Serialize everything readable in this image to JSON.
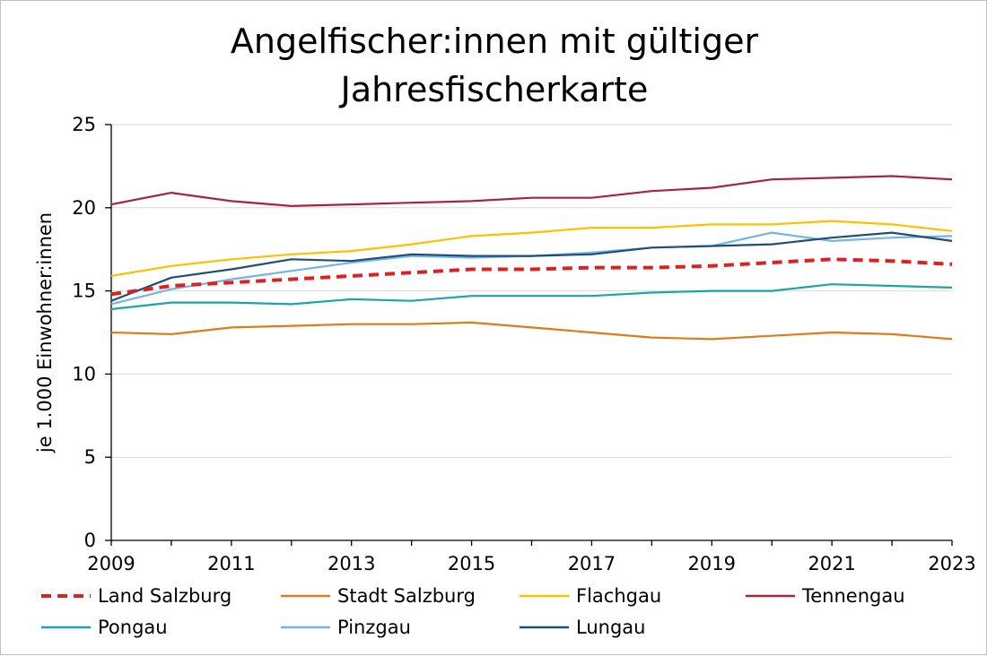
{
  "chart_data": {
    "type": "line",
    "title_lines": [
      "Angelfischer:innen mit gültiger",
      "Jahresfischerkarte"
    ],
    "ylabel": "je 1.000 Einwohner:innen",
    "xlabel": "",
    "ylim": [
      0,
      25
    ],
    "yticks": [
      0,
      5,
      10,
      15,
      20,
      25
    ],
    "xlim": [
      2009,
      2023
    ],
    "xticks": [
      2009,
      2011,
      2013,
      2015,
      2017,
      2019,
      2021,
      2023
    ],
    "grid": "horizontal",
    "legend_position": "bottom",
    "x": [
      2009,
      2010,
      2011,
      2012,
      2013,
      2014,
      2015,
      2016,
      2017,
      2018,
      2019,
      2020,
      2021,
      2022,
      2023
    ],
    "series": [
      {
        "name": "Land Salzburg",
        "color": "#e02020",
        "dashed": true,
        "values": [
          14.8,
          15.3,
          15.5,
          15.7,
          15.9,
          16.1,
          16.3,
          16.3,
          16.4,
          16.4,
          16.5,
          16.7,
          16.9,
          16.8,
          16.6
        ]
      },
      {
        "name": "Stadt Salzburg",
        "color": "#e07b1a",
        "dashed": false,
        "values": [
          12.5,
          12.4,
          12.8,
          12.9,
          13.0,
          13.0,
          13.1,
          12.8,
          12.5,
          12.2,
          12.1,
          12.3,
          12.5,
          12.4,
          12.1
        ]
      },
      {
        "name": "Flachgau",
        "color": "#ffc000",
        "dashed": false,
        "values": [
          15.9,
          16.5,
          16.9,
          17.2,
          17.4,
          17.8,
          18.3,
          18.5,
          18.8,
          18.8,
          19.0,
          19.0,
          19.2,
          19.0,
          18.6
        ]
      },
      {
        "name": "Tennengau",
        "color": "#a8243c",
        "dashed": false,
        "values": [
          20.2,
          20.9,
          20.4,
          20.1,
          20.2,
          20.3,
          20.4,
          20.6,
          20.6,
          21.0,
          21.2,
          21.7,
          21.8,
          21.9,
          21.7
        ]
      },
      {
        "name": "Pongau",
        "color": "#1ba6a6",
        "dashed": false,
        "values": [
          13.9,
          14.3,
          14.3,
          14.2,
          14.5,
          14.4,
          14.7,
          14.7,
          14.7,
          14.9,
          15.0,
          15.0,
          15.4,
          15.3,
          15.2
        ]
      },
      {
        "name": "Pinzgau",
        "color": "#72b6e6",
        "dashed": false,
        "values": [
          14.2,
          15.1,
          15.7,
          16.2,
          16.7,
          17.1,
          17.0,
          17.1,
          17.3,
          17.6,
          17.7,
          18.5,
          18.0,
          18.2,
          18.3
        ]
      },
      {
        "name": "Lungau",
        "color": "#1f4e79",
        "dashed": false,
        "values": [
          14.4,
          15.8,
          16.3,
          16.9,
          16.8,
          17.2,
          17.1,
          17.1,
          17.2,
          17.6,
          17.7,
          17.8,
          18.2,
          18.5,
          18.0
        ]
      }
    ]
  }
}
